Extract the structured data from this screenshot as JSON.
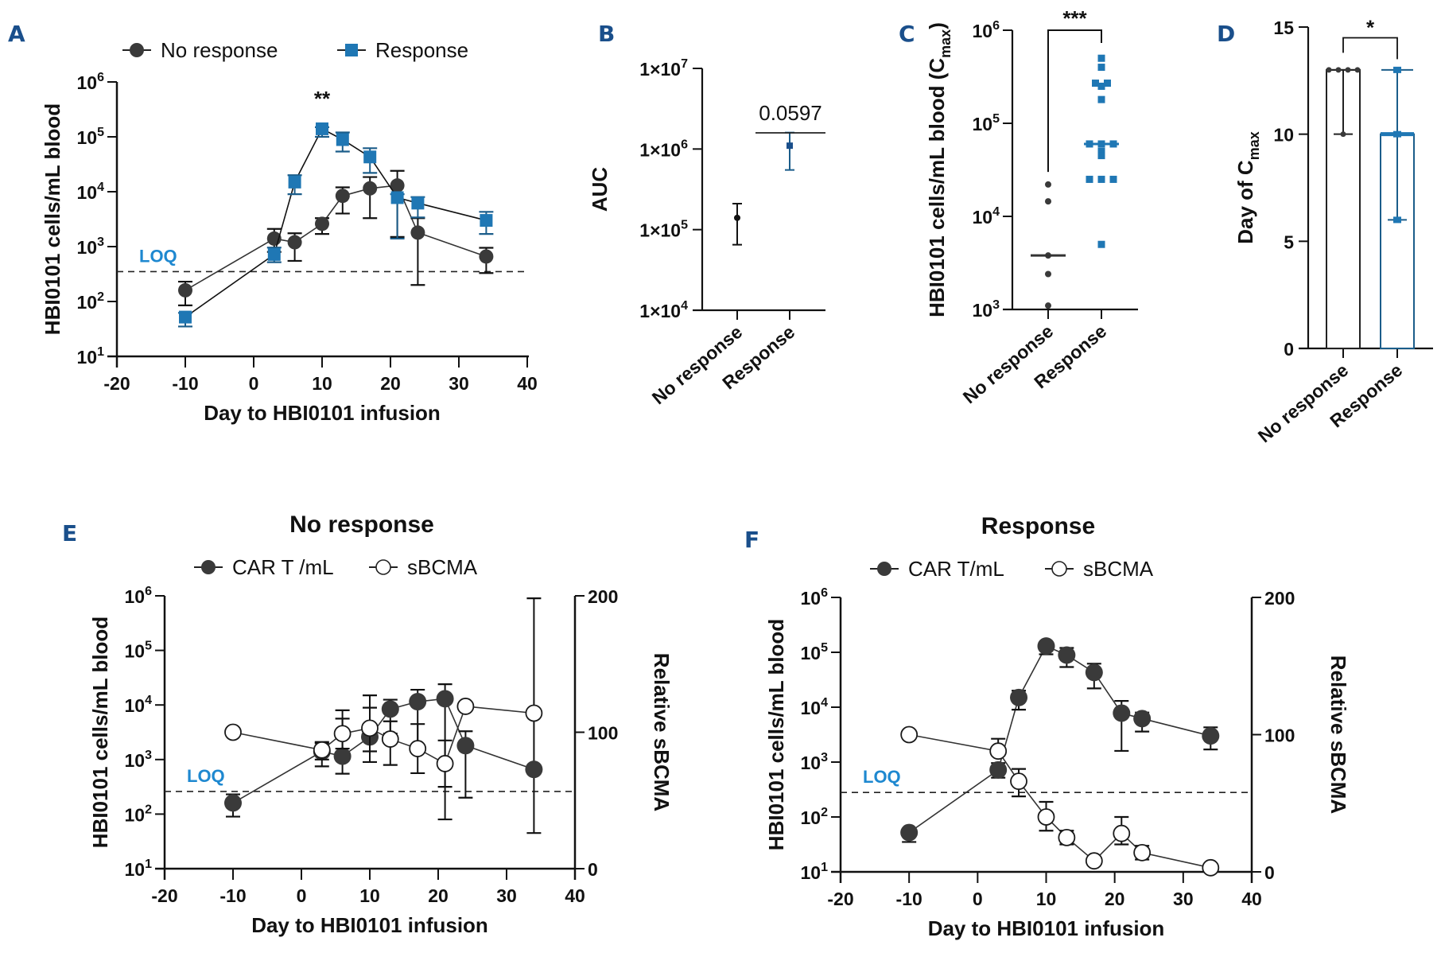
{
  "colors": {
    "response": "#1f77b4",
    "no_response": "#3a3a3a",
    "panel_letter": "#1a4f8b",
    "loq": "#1e88d0",
    "axis": "#111111"
  },
  "chart_data": [
    {
      "id": "A",
      "type": "line",
      "letter": "A",
      "title": "",
      "xlabel": "Day to HBI0101 infusion",
      "ylabel": "HBI0101 cells/mL blood",
      "yscale": "log",
      "ylim": [
        10,
        1000000
      ],
      "xlim": [
        -20,
        40
      ],
      "xticks": [
        "-20",
        "-10",
        "0",
        "10",
        "20",
        "30",
        "40"
      ],
      "yticks": [
        {
          "base": "10",
          "exp": "1"
        },
        {
          "base": "10",
          "exp": "2"
        },
        {
          "base": "10",
          "exp": "3"
        },
        {
          "base": "10",
          "exp": "4"
        },
        {
          "base": "10",
          "exp": "5"
        },
        {
          "base": "10",
          "exp": "6"
        }
      ],
      "legend": {
        "position": "top",
        "entries": [
          "No response",
          "Response"
        ]
      },
      "loq": {
        "label": "LOQ",
        "value": 350
      },
      "annotations": [
        {
          "text": "**",
          "x": 10
        }
      ],
      "x": [
        -10,
        3,
        6,
        10,
        13,
        17,
        21,
        24,
        34
      ],
      "series": [
        {
          "name": "No response",
          "marker": "circle",
          "values": [
            160,
            1400,
            1200,
            2600,
            8400,
            11500,
            13000,
            1800,
            660
          ],
          "err_low": [
            85,
            800,
            550,
            1700,
            4000,
            3300,
            1500,
            200,
            330
          ],
          "err_high": [
            230,
            2100,
            1750,
            3300,
            12000,
            18500,
            24000,
            3300,
            950
          ]
        },
        {
          "name": "Response",
          "marker": "square",
          "values": [
            52,
            720,
            15000,
            140000,
            89000,
            43000,
            7800,
            6200,
            3000
          ],
          "err_low": [
            35,
            520,
            9000,
            100000,
            54000,
            22000,
            1400,
            3400,
            1700
          ],
          "err_high": [
            62,
            960,
            20000,
            150000,
            120000,
            62000,
            9000,
            8000,
            4300
          ]
        }
      ]
    },
    {
      "id": "B",
      "type": "scatter",
      "letter": "B",
      "ylabel": "AUC",
      "yscale": "log",
      "ylim": [
        10000,
        10000000
      ],
      "yticks": [
        {
          "base": "1×10",
          "exp": "4"
        },
        {
          "base": "1×10",
          "exp": "5"
        },
        {
          "base": "1×10",
          "exp": "6"
        },
        {
          "base": "1×10",
          "exp": "7"
        }
      ],
      "categories": [
        "No response",
        "Response"
      ],
      "values": [
        140000,
        1100000
      ],
      "err_low": [
        65000,
        550000
      ],
      "err_high": [
        210000,
        1600000
      ],
      "annotations": [
        {
          "text": "0.0597"
        }
      ]
    },
    {
      "id": "C",
      "type": "scatter",
      "letter": "C",
      "ylabel": "HBI0101 cells/mL blood (C",
      "ylabel_sub": "max",
      "ylabel_end": ")",
      "yscale": "log",
      "ylim": [
        1000,
        1000000
      ],
      "yticks": [
        {
          "base": "10",
          "exp": "3"
        },
        {
          "base": "10",
          "exp": "4"
        },
        {
          "base": "10",
          "exp": "5"
        },
        {
          "base": "10",
          "exp": "6"
        }
      ],
      "categories": [
        "No response",
        "Response"
      ],
      "points": [
        [
          22000,
          14500,
          3800,
          2400,
          1100
        ],
        [
          500000,
          400000,
          270000,
          270000,
          250000,
          180000,
          60000,
          60000,
          60000,
          50000,
          45000,
          25000,
          25000,
          25000,
          5000
        ]
      ],
      "medians": [
        3800,
        60000
      ],
      "annotations": [
        {
          "text": "***"
        }
      ]
    },
    {
      "id": "D",
      "type": "bar",
      "letter": "D",
      "ylabel": "Day of C",
      "ylabel_sub": "max",
      "ylim": [
        0,
        15
      ],
      "yticks": [
        "0",
        "5",
        "10",
        "15"
      ],
      "categories": [
        "No response",
        "Response"
      ],
      "values": [
        13,
        10
      ],
      "range": [
        [
          10,
          13
        ],
        [
          6,
          13
        ]
      ],
      "points": [
        [
          13,
          13,
          13,
          13,
          10
        ],
        [
          13,
          10,
          6
        ]
      ],
      "annotations": [
        {
          "text": "*"
        }
      ]
    },
    {
      "id": "E",
      "type": "line",
      "letter": "E",
      "title": "No response",
      "xlabel": "Day to HBI0101 infusion",
      "ylabel": "HBI0101 cells/mL blood",
      "ylabel_right": "Relative sBCMA",
      "yscale": "log",
      "ylim": [
        10,
        1000000
      ],
      "ylim_right": [
        0,
        200
      ],
      "xlim": [
        -20,
        40
      ],
      "xticks": [
        "-20",
        "-10",
        "0",
        "10",
        "20",
        "30",
        "40"
      ],
      "yticks": [
        {
          "base": "10",
          "exp": "1"
        },
        {
          "base": "10",
          "exp": "2"
        },
        {
          "base": "10",
          "exp": "3"
        },
        {
          "base": "10",
          "exp": "4"
        },
        {
          "base": "10",
          "exp": "5"
        },
        {
          "base": "10",
          "exp": "6"
        }
      ],
      "yticks_right": [
        "0",
        "100",
        "200"
      ],
      "legend": {
        "position": "top",
        "entries": [
          "CAR T /mL",
          "sBCMA"
        ]
      },
      "loq": {
        "label": "LOQ",
        "value": 260
      },
      "x": [
        -10,
        3,
        6,
        10,
        13,
        17,
        21,
        24,
        34
      ],
      "series": [
        {
          "name": "CAR T /mL",
          "axis": "left",
          "marker": "filled-circle",
          "values": [
            160,
            1400,
            1150,
            2600,
            8400,
            11500,
            13000,
            1800,
            660
          ],
          "err_low": [
            90,
            750,
            550,
            900,
            3000,
            1500,
            80,
            200,
            45
          ],
          "err_high": [
            230,
            2100,
            8000,
            15000,
            12500,
            19000,
            24000,
            3300,
            900000
          ]
        },
        {
          "name": "sBCMA",
          "axis": "right",
          "marker": "open-circle",
          "values": [
            100,
            87,
            99,
            103,
            95,
            88,
            77,
            119,
            114
          ],
          "err_low": [
            100,
            80,
            88,
            86,
            76,
            70,
            60,
            119,
            114
          ],
          "err_high": [
            100,
            92,
            110,
            118,
            108,
            106,
            94,
            119,
            114
          ]
        }
      ]
    },
    {
      "id": "F",
      "type": "line",
      "letter": "F",
      "title": "Response",
      "xlabel": "Day to HBI0101 infusion",
      "ylabel": "HBI0101 cells/mL blood",
      "ylabel_right": "Relative sBCMA",
      "yscale": "log",
      "ylim": [
        10,
        1000000
      ],
      "ylim_right": [
        0,
        200
      ],
      "xlim": [
        -20,
        40
      ],
      "xticks": [
        "-20",
        "-10",
        "0",
        "10",
        "20",
        "30",
        "40"
      ],
      "yticks": [
        {
          "base": "10",
          "exp": "1"
        },
        {
          "base": "10",
          "exp": "2"
        },
        {
          "base": "10",
          "exp": "3"
        },
        {
          "base": "10",
          "exp": "4"
        },
        {
          "base": "10",
          "exp": "5"
        },
        {
          "base": "10",
          "exp": "6"
        }
      ],
      "yticks_right": [
        "0",
        "100",
        "200"
      ],
      "legend": {
        "position": "top",
        "entries": [
          "CAR T/mL",
          "sBCMA"
        ]
      },
      "loq": {
        "label": "LOQ",
        "value": 280
      },
      "x": [
        -10,
        3,
        6,
        10,
        13,
        17,
        21,
        24,
        34
      ],
      "series": [
        {
          "name": "CAR T/mL",
          "axis": "left",
          "marker": "filled-circle",
          "values": [
            52,
            720,
            15000,
            130000,
            89000,
            43000,
            7800,
            6200,
            3000
          ],
          "err_low": [
            35,
            520,
            9000,
            92000,
            54000,
            22000,
            1600,
            3600,
            1700
          ],
          "err_high": [
            52,
            960,
            20000,
            130000,
            120000,
            62000,
            13000,
            8000,
            4300
          ]
        },
        {
          "name": "sBCMA",
          "axis": "right",
          "marker": "open-circle",
          "values": [
            100,
            88,
            66,
            40,
            25,
            8,
            28,
            14,
            3
          ],
          "err_low": [
            100,
            88,
            55,
            30,
            20,
            8,
            20,
            9,
            3
          ],
          "err_high": [
            100,
            97,
            75,
            51,
            30,
            8,
            40,
            19,
            3
          ]
        }
      ]
    }
  ]
}
